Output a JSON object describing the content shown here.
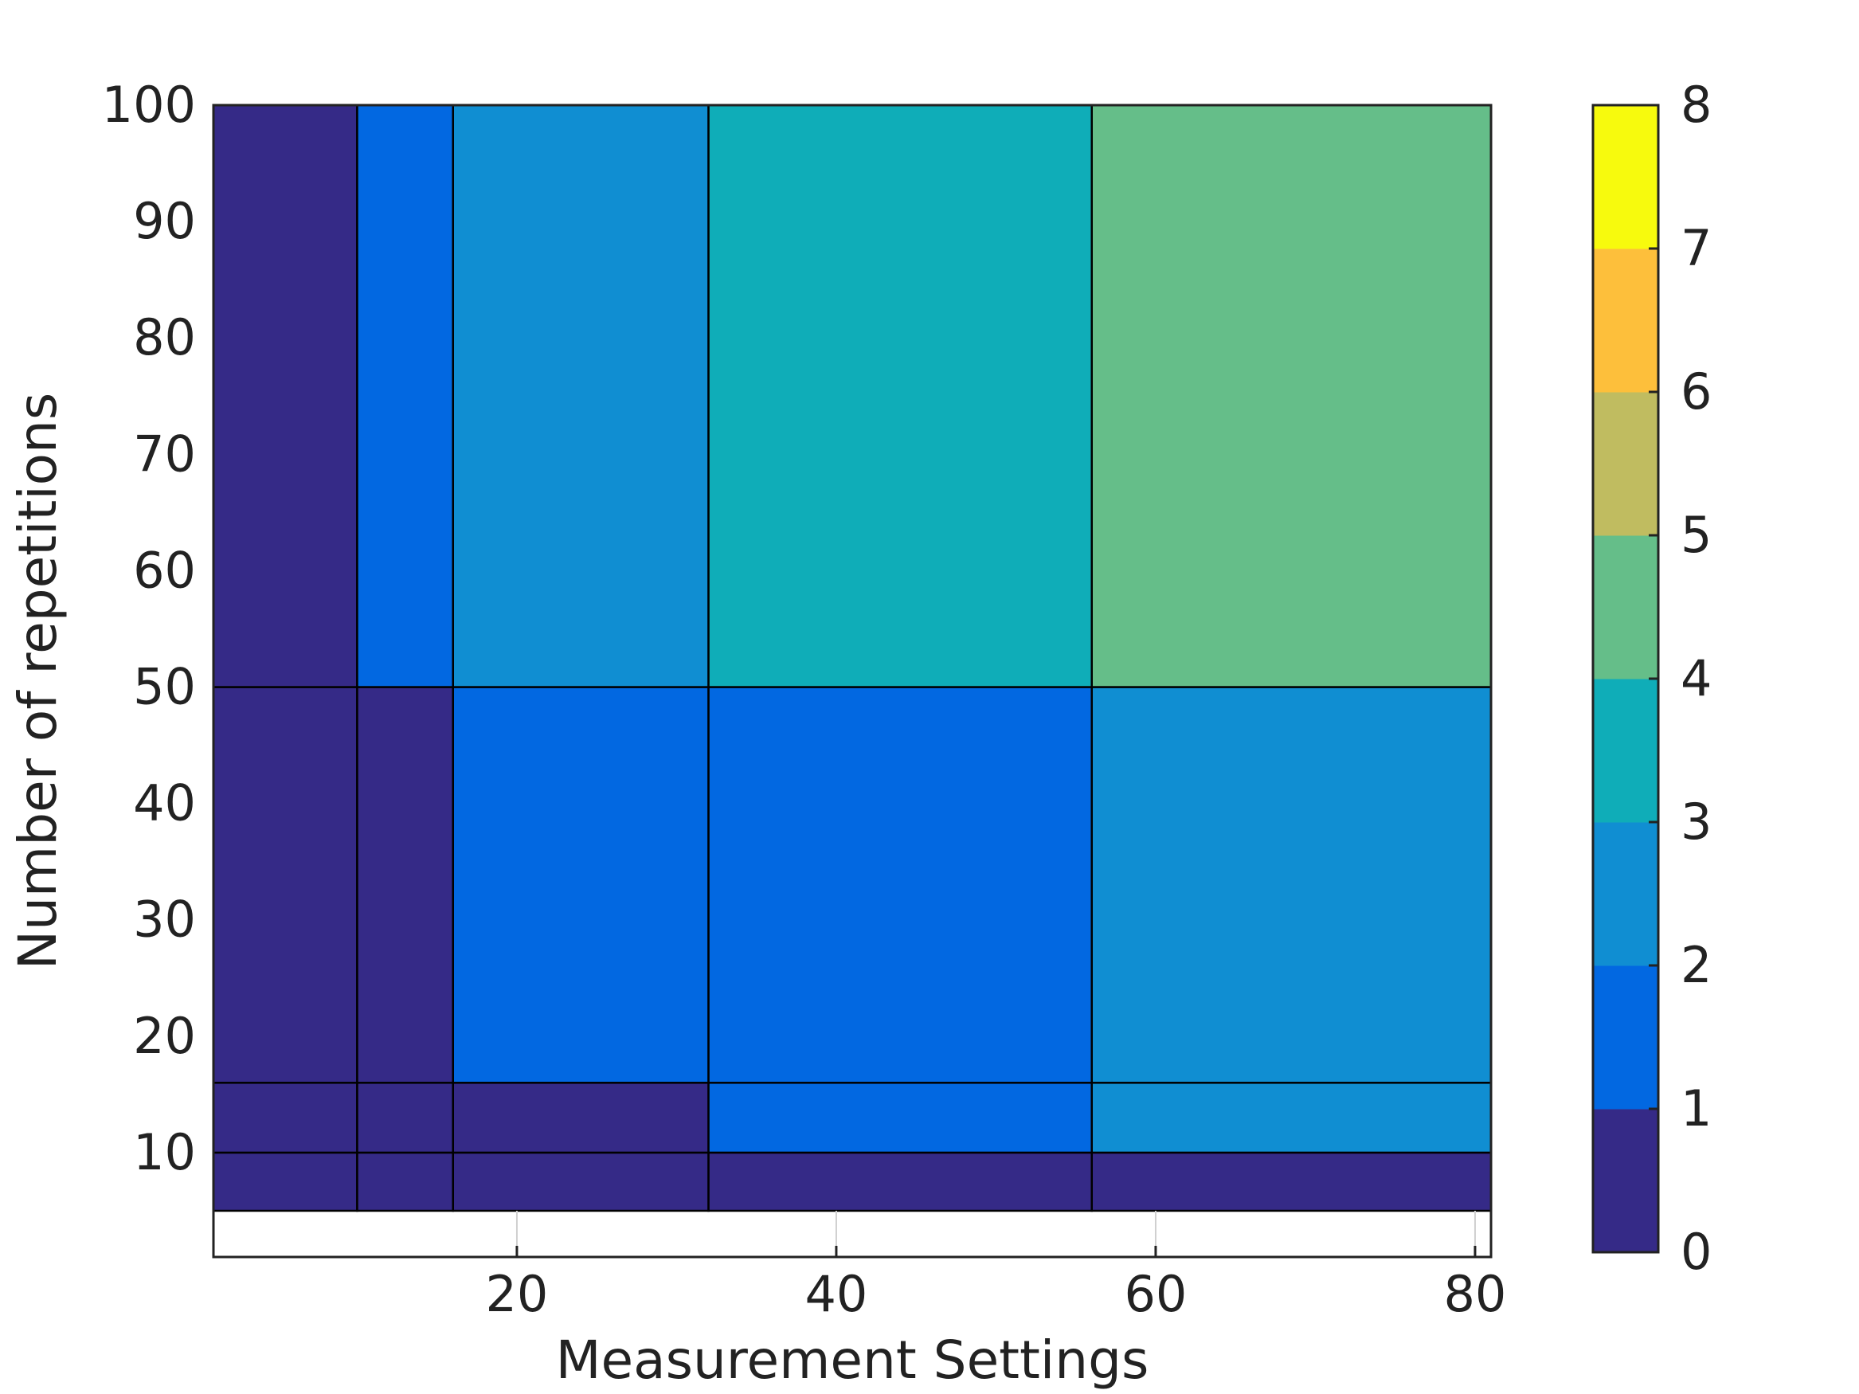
{
  "chart_data": {
    "type": "heatmap",
    "xlabel": "Measurement Settings",
    "ylabel": "Number of repetitions",
    "xlim": [
      1,
      81
    ],
    "ylim": [
      0,
      100
    ],
    "x_ticks": [
      20,
      40,
      60,
      80
    ],
    "y_ticks": [
      10,
      20,
      30,
      40,
      50,
      60,
      70,
      80,
      90,
      100
    ],
    "grid": false,
    "x_edges": [
      1,
      10,
      16,
      32,
      56,
      81
    ],
    "y_edges": [
      5,
      10,
      16,
      50,
      100
    ],
    "values": [
      [
        0,
        0,
        0,
        0,
        0
      ],
      [
        0,
        0,
        0,
        1,
        2
      ],
      [
        0,
        0,
        1,
        1,
        2
      ],
      [
        0,
        1,
        2,
        3,
        4
      ]
    ],
    "colorbar": {
      "range": [
        0,
        8
      ],
      "ticks": [
        0,
        1,
        2,
        3,
        4,
        5,
        6,
        7,
        8
      ],
      "placement": "right",
      "colors": [
        "#352a87",
        "#0268e1",
        "#108ed2",
        "#0fadb8",
        "#65be89",
        "#c0bc60",
        "#fdbf3b",
        "#f7fa0d"
      ]
    }
  }
}
